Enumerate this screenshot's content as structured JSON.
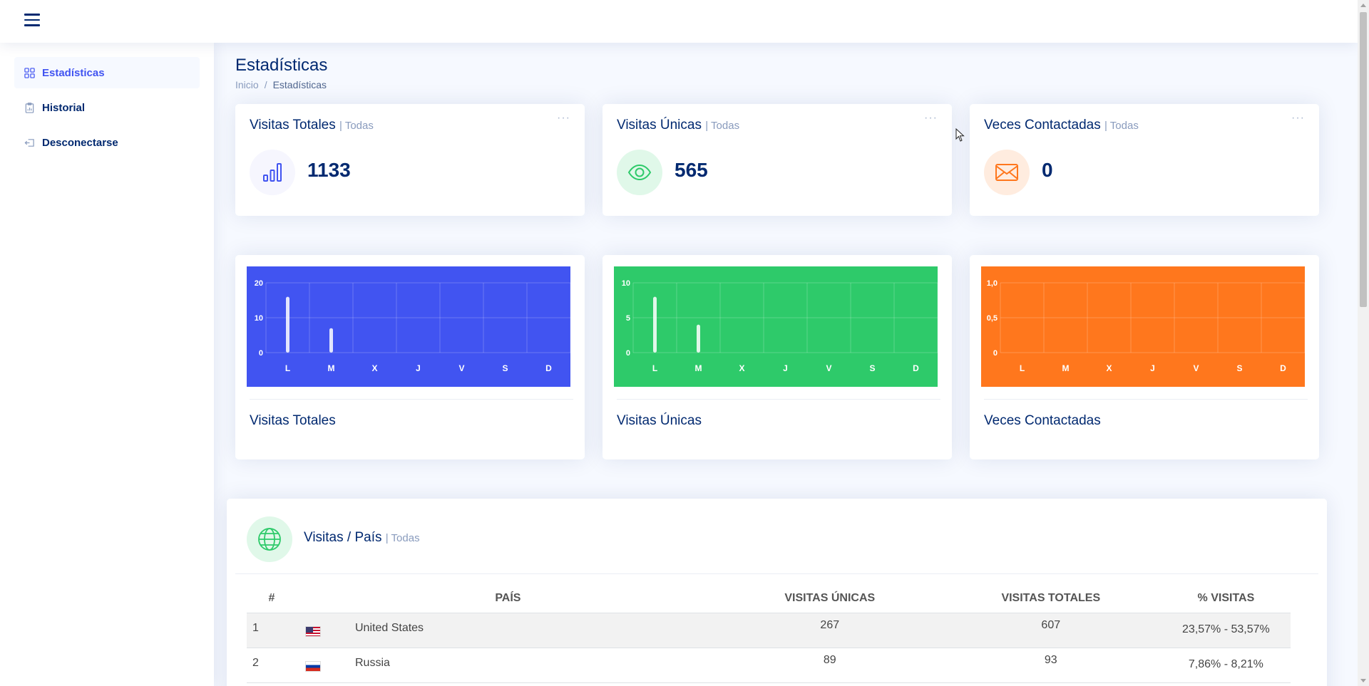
{
  "header": {
    "menu_icon": "hamburger-icon"
  },
  "sidebar": {
    "items": [
      {
        "label": "Estadísticas",
        "icon": "grid-icon",
        "active": true
      },
      {
        "label": "Historial",
        "icon": "clipboard-icon",
        "active": false
      },
      {
        "label": "Desconectarse",
        "icon": "logout-icon",
        "active": false
      }
    ]
  },
  "page": {
    "title": "Estadísticas",
    "breadcrumb": [
      "Inicio",
      "/",
      "Estadísticas"
    ]
  },
  "stats": [
    {
      "title": "Visitas Totales",
      "filter": "| Todas",
      "value": "1133",
      "icon": "bar-chart-icon",
      "icon_color": "#4154f1",
      "icon_bg": "#f6f6fe"
    },
    {
      "title": "Visitas Únicas",
      "filter": "| Todas",
      "value": "565",
      "icon": "eye-icon",
      "icon_color": "#2eca6a",
      "icon_bg": "#e0f8e9"
    },
    {
      "title": "Veces Contactadas",
      "filter": "| Todas",
      "value": "0",
      "icon": "envelope-icon",
      "icon_color": "#ff771d",
      "icon_bg": "#ffecdf"
    }
  ],
  "more_label": "···",
  "chart_data": [
    {
      "type": "bar",
      "title": "Visitas Totales",
      "background": "#4154f1",
      "categories": [
        "L",
        "M",
        "X",
        "J",
        "V",
        "S",
        "D"
      ],
      "values": [
        16,
        7,
        0,
        0,
        0,
        0,
        0
      ],
      "ylim": [
        0,
        20
      ],
      "yticks": [
        "0",
        "10",
        "20"
      ],
      "grid": true
    },
    {
      "type": "bar",
      "title": "Visitas Únicas",
      "background": "#2eca6a",
      "categories": [
        "L",
        "M",
        "X",
        "J",
        "V",
        "S",
        "D"
      ],
      "values": [
        8,
        4,
        0,
        0,
        0,
        0,
        0
      ],
      "ylim": [
        0,
        10
      ],
      "yticks": [
        "0",
        "5",
        "10"
      ],
      "grid": true
    },
    {
      "type": "bar",
      "title": "Veces Contactadas",
      "background": "#ff771d",
      "categories": [
        "L",
        "M",
        "X",
        "J",
        "V",
        "S",
        "D"
      ],
      "values": [
        0,
        0,
        0,
        0,
        0,
        0,
        0
      ],
      "ylim": [
        0,
        1
      ],
      "yticks": [
        "0",
        "0,5",
        "1,0"
      ],
      "grid": true
    }
  ],
  "countries": {
    "title": "Visitas / País",
    "filter": "| Todas",
    "icon": "globe-icon",
    "headers": [
      "#",
      "PAÍS",
      "VISITAS ÚNICAS",
      "VISITAS TOTALES",
      "% VISITAS"
    ],
    "rows": [
      {
        "rank": "1",
        "flag": "flag-us",
        "country": "United States",
        "unique": "267",
        "total": "607",
        "pct": "23,57% - 53,57%"
      },
      {
        "rank": "2",
        "flag": "flag-ru",
        "country": "Russia",
        "unique": "89",
        "total": "93",
        "pct": "7,86% - 8,21%"
      }
    ]
  }
}
